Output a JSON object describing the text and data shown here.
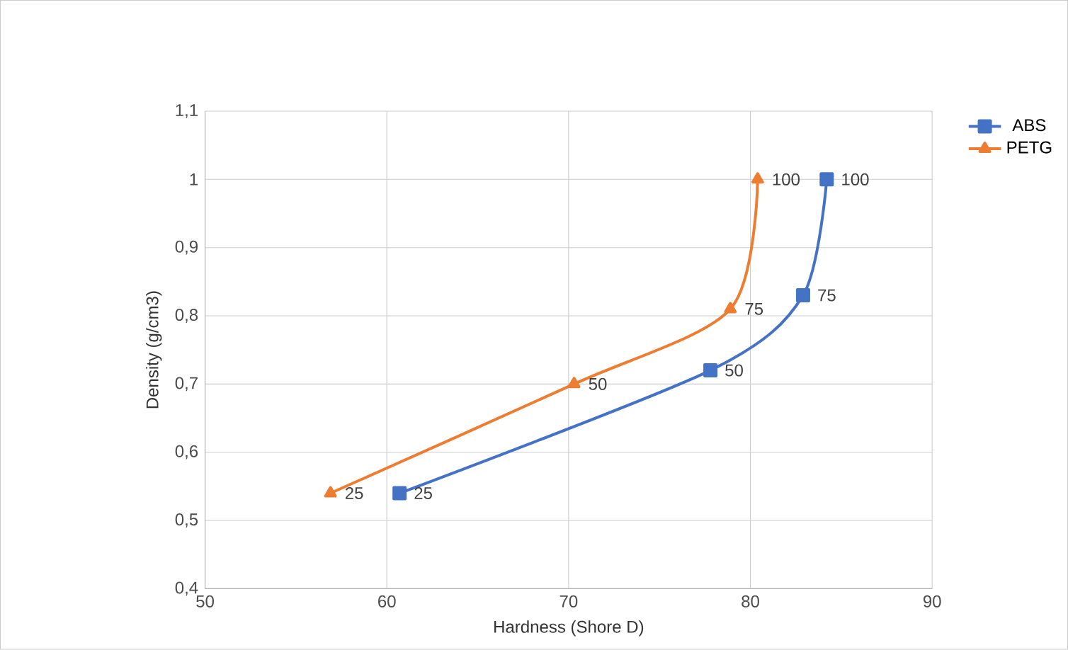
{
  "chart_data": {
    "type": "line",
    "xlabel": "Hardness (Shore D)",
    "ylabel": "Density (g/cm3)",
    "series": [
      {
        "name": "ABS",
        "color": "#4472c4",
        "marker": "square",
        "x": [
          60.7,
          77.8,
          82.9,
          84.2
        ],
        "values": [
          0.54,
          0.72,
          0.83,
          1.0
        ]
      },
      {
        "name": "PETG",
        "color": "#ed7d31",
        "marker": "triangle",
        "x": [
          56.9,
          70.3,
          78.9,
          80.4
        ],
        "values": [
          0.54,
          0.7,
          0.81,
          1.0
        ]
      }
    ],
    "annotations": [
      {
        "text": "25",
        "x": 60.7,
        "y": 0.54
      },
      {
        "text": "50",
        "x": 77.8,
        "y": 0.72
      },
      {
        "text": "75",
        "x": 82.9,
        "y": 0.83
      },
      {
        "text": "100",
        "x": 84.2,
        "y": 1.0
      },
      {
        "text": "25",
        "x": 56.9,
        "y": 0.54
      },
      {
        "text": "50",
        "x": 70.3,
        "y": 0.7
      },
      {
        "text": "75",
        "x": 78.9,
        "y": 0.81
      },
      {
        "text": "100",
        "x": 80.4,
        "y": 1.0
      }
    ],
    "xlim": [
      50,
      90
    ],
    "xticks": [
      50,
      60,
      70,
      80,
      90
    ],
    "ylim": [
      0.4,
      1.1
    ],
    "yticks": [
      {
        "value": 0.4,
        "label": "0,4"
      },
      {
        "value": 0.5,
        "label": "0,5"
      },
      {
        "value": 0.6,
        "label": "0,6"
      },
      {
        "value": 0.7,
        "label": "0,7"
      },
      {
        "value": 0.8,
        "label": "0,8"
      },
      {
        "value": 0.9,
        "label": "0,9"
      },
      {
        "value": 1,
        "label": "1"
      },
      {
        "value": 1.1,
        "label": "1,1"
      }
    ],
    "grid": true,
    "legend": "right",
    "line_style": "solid"
  }
}
